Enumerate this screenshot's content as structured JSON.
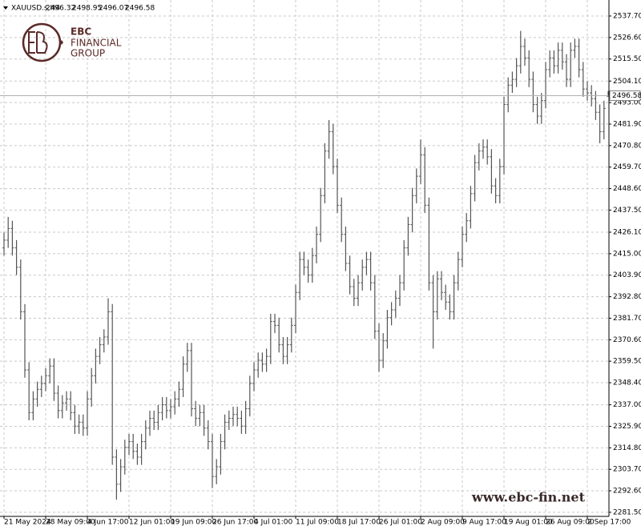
{
  "chart_data": {
    "type": "ohlc",
    "title": "XAUUSD.s,H4",
    "color": "#555555",
    "grid": true,
    "categories": [
      "21 May 2024",
      null,
      null,
      null,
      null,
      null,
      null,
      null,
      null,
      null,
      "28 May 09:00",
      null,
      null,
      null,
      null,
      null,
      null,
      null,
      null,
      null,
      "4 Jun 17:00",
      null,
      null,
      null,
      null,
      null,
      null,
      null,
      null,
      null,
      "12 Jun 01:00",
      null,
      null,
      null,
      null,
      null,
      null,
      null,
      null,
      null,
      "19 Jun 09:00",
      null,
      null,
      null,
      null,
      null,
      null,
      null,
      null,
      null,
      "26 Jun 17:00",
      null,
      null,
      null,
      null,
      null,
      null,
      null,
      null,
      null,
      "4 Jul 01:00",
      null,
      null,
      null,
      null,
      null,
      null,
      null,
      null,
      null,
      "11 Jul 09:00",
      null,
      null,
      null,
      null,
      null,
      null,
      null,
      null,
      null,
      "18 Jul 17:00",
      null,
      null,
      null,
      null,
      null,
      null,
      null,
      null,
      null,
      "26 Jul 01:00",
      null,
      null,
      null,
      null,
      null,
      null,
      null,
      null,
      null,
      "2 Aug 09:00",
      null,
      null,
      null,
      null,
      null,
      null,
      null,
      null,
      null,
      "9 Aug 17:00",
      null,
      null,
      null,
      null,
      null,
      null,
      null,
      null,
      null,
      "19 Aug 01:00",
      null,
      null,
      null,
      null,
      null,
      null,
      null,
      null,
      null,
      "26 Aug 09:00",
      null,
      null,
      null,
      null,
      null,
      null,
      null,
      null,
      null,
      "2 Sep 17:00",
      null,
      null,
      null,
      null,
      null
    ],
    "open": [
      2418,
      2422,
      2428,
      2418,
      2408,
      2385,
      2355,
      2333,
      2340,
      2345,
      2348,
      2352,
      2357,
      2343,
      2334,
      2338,
      2340,
      2333,
      2326,
      2328,
      2325,
      2340,
      2352,
      2362,
      2368,
      2372,
      2385,
      2310,
      2296,
      2305,
      2315,
      2318,
      2313,
      2310,
      2318,
      2325,
      2330,
      2328,
      2333,
      2337,
      2334,
      2336,
      2340,
      2345,
      2358,
      2365,
      2335,
      2330,
      2333,
      2325,
      2318,
      2300,
      2305,
      2318,
      2328,
      2330,
      2332,
      2330,
      2326,
      2335,
      2348,
      2355,
      2360,
      2358,
      2362,
      2380,
      2378,
      2368,
      2362,
      2368,
      2378,
      2395,
      2412,
      2408,
      2404,
      2414,
      2425,
      2445,
      2468,
      2478,
      2460,
      2440,
      2425,
      2410,
      2398,
      2392,
      2400,
      2408,
      2412,
      2400,
      2375,
      2360,
      2370,
      2382,
      2386,
      2392,
      2400,
      2418,
      2430,
      2445,
      2455,
      2466,
      2440,
      2400,
      2385,
      2402,
      2395,
      2390,
      2385,
      2400,
      2412,
      2425,
      2432,
      2446,
      2462,
      2468,
      2470,
      2465,
      2450,
      2445,
      2460,
      2492,
      2502,
      2505,
      2512,
      2522,
      2516,
      2505,
      2492,
      2486,
      2494,
      2510,
      2516,
      2512,
      2520,
      2514,
      2505,
      2520,
      2522,
      2510,
      2500,
      2498,
      2495,
      2488,
      2478,
      2496.32
    ],
    "high": [
      2426,
      2434,
      2432,
      2422,
      2412,
      2389,
      2359,
      2344,
      2349,
      2352,
      2356,
      2361,
      2361,
      2347,
      2342,
      2344,
      2344,
      2337,
      2332,
      2332,
      2344,
      2356,
      2366,
      2372,
      2376,
      2392,
      2389,
      2314,
      2309,
      2319,
      2322,
      2322,
      2317,
      2322,
      2329,
      2334,
      2334,
      2337,
      2341,
      2341,
      2340,
      2344,
      2349,
      2362,
      2369,
      2369,
      2339,
      2337,
      2337,
      2329,
      2322,
      2309,
      2322,
      2332,
      2334,
      2336,
      2336,
      2334,
      2339,
      2352,
      2359,
      2364,
      2364,
      2366,
      2384,
      2384,
      2382,
      2372,
      2372,
      2382,
      2399,
      2416,
      2416,
      2412,
      2418,
      2429,
      2449,
      2472,
      2484,
      2482,
      2464,
      2444,
      2429,
      2414,
      2402,
      2404,
      2412,
      2416,
      2416,
      2404,
      2379,
      2374,
      2386,
      2390,
      2396,
      2404,
      2422,
      2434,
      2449,
      2459,
      2474,
      2470,
      2444,
      2404,
      2406,
      2406,
      2399,
      2394,
      2404,
      2416,
      2429,
      2436,
      2450,
      2466,
      2472,
      2474,
      2474,
      2469,
      2454,
      2464,
      2496,
      2506,
      2509,
      2516,
      2530,
      2526,
      2520,
      2509,
      2496,
      2498,
      2514,
      2520,
      2520,
      2524,
      2524,
      2518,
      2524,
      2526,
      2526,
      2514,
      2504,
      2502,
      2499,
      2492,
      2494,
      2498.95
    ],
    "low": [
      2414,
      2418,
      2414,
      2404,
      2381,
      2351,
      2329,
      2329,
      2336,
      2341,
      2344,
      2348,
      2339,
      2330,
      2330,
      2334,
      2329,
      2322,
      2322,
      2321,
      2321,
      2336,
      2348,
      2358,
      2364,
      2368,
      2306,
      2288,
      2292,
      2301,
      2311,
      2309,
      2306,
      2306,
      2314,
      2321,
      2324,
      2324,
      2329,
      2330,
      2330,
      2332,
      2336,
      2341,
      2354,
      2331,
      2326,
      2326,
      2321,
      2314,
      2294,
      2296,
      2301,
      2314,
      2324,
      2326,
      2326,
      2322,
      2322,
      2331,
      2344,
      2351,
      2354,
      2354,
      2358,
      2374,
      2364,
      2358,
      2358,
      2364,
      2374,
      2391,
      2404,
      2400,
      2400,
      2410,
      2421,
      2441,
      2464,
      2456,
      2436,
      2421,
      2406,
      2394,
      2388,
      2388,
      2396,
      2404,
      2396,
      2371,
      2354,
      2356,
      2366,
      2378,
      2382,
      2388,
      2396,
      2414,
      2426,
      2441,
      2451,
      2436,
      2396,
      2366,
      2381,
      2391,
      2386,
      2381,
      2381,
      2396,
      2408,
      2421,
      2428,
      2442,
      2458,
      2464,
      2461,
      2446,
      2441,
      2441,
      2456,
      2488,
      2498,
      2501,
      2508,
      2512,
      2501,
      2488,
      2482,
      2482,
      2490,
      2506,
      2508,
      2508,
      2510,
      2501,
      2501,
      2516,
      2506,
      2496,
      2494,
      2491,
      2484,
      2472,
      2474,
      2496.07
    ],
    "close": [
      2422,
      2428,
      2418,
      2408,
      2385,
      2355,
      2333,
      2340,
      2345,
      2348,
      2352,
      2357,
      2343,
      2334,
      2338,
      2340,
      2333,
      2326,
      2328,
      2325,
      2340,
      2352,
      2362,
      2368,
      2372,
      2385,
      2310,
      2296,
      2305,
      2315,
      2318,
      2313,
      2310,
      2318,
      2325,
      2330,
      2328,
      2333,
      2337,
      2334,
      2336,
      2340,
      2345,
      2358,
      2365,
      2335,
      2330,
      2333,
      2325,
      2318,
      2300,
      2305,
      2318,
      2328,
      2330,
      2332,
      2330,
      2326,
      2335,
      2348,
      2355,
      2360,
      2358,
      2362,
      2380,
      2378,
      2368,
      2362,
      2368,
      2378,
      2395,
      2412,
      2408,
      2404,
      2414,
      2425,
      2445,
      2468,
      2478,
      2460,
      2440,
      2425,
      2410,
      2398,
      2392,
      2400,
      2408,
      2412,
      2400,
      2375,
      2360,
      2370,
      2382,
      2386,
      2392,
      2400,
      2418,
      2430,
      2445,
      2455,
      2466,
      2440,
      2400,
      2385,
      2402,
      2395,
      2390,
      2385,
      2400,
      2412,
      2425,
      2432,
      2446,
      2462,
      2468,
      2470,
      2465,
      2450,
      2445,
      2460,
      2492,
      2502,
      2505,
      2512,
      2522,
      2516,
      2505,
      2492,
      2486,
      2494,
      2510,
      2516,
      2512,
      2520,
      2514,
      2505,
      2520,
      2522,
      2510,
      2500,
      2498,
      2495,
      2488,
      2478,
      2490,
      2496.58
    ],
    "ylim": [
      2279.4,
      2544.3
    ],
    "yticks": [
      {
        "value": 2537.7,
        "label": "2537.70"
      },
      {
        "value": 2526.6,
        "label": "2526.60"
      },
      {
        "value": 2515.5,
        "label": "2515.50"
      },
      {
        "value": 2504.1,
        "label": "2504.10"
      },
      {
        "value": 2493,
        "label": "2493.00"
      },
      {
        "value": 2481.9,
        "label": "2481.90"
      },
      {
        "value": 2470.8,
        "label": "2470.80"
      },
      {
        "value": 2459.7,
        "label": "2459.70"
      },
      {
        "value": 2448.6,
        "label": "2448.60"
      },
      {
        "value": 2437.5,
        "label": "2437.50"
      },
      {
        "value": 2426.1,
        "label": "2426.10"
      },
      {
        "value": 2415,
        "label": "2415.00"
      },
      {
        "value": 2403.9,
        "label": "2403.90"
      },
      {
        "value": 2392.8,
        "label": "2392.80"
      },
      {
        "value": 2381.7,
        "label": "2381.70"
      },
      {
        "value": 2370.6,
        "label": "2370.60"
      },
      {
        "value": 2359.5,
        "label": "2359.50"
      },
      {
        "value": 2348.4,
        "label": "2348.40"
      },
      {
        "value": 2337,
        "label": "2337.00"
      },
      {
        "value": 2325.9,
        "label": "2325.90"
      },
      {
        "value": 2314.8,
        "label": "2314.80"
      },
      {
        "value": 2303.7,
        "label": "2303.70"
      },
      {
        "value": 2292.6,
        "label": "2292.60"
      },
      {
        "value": 2281.5,
        "label": "2281.50"
      }
    ]
  },
  "logo": {
    "lines": [
      "EBC",
      "FINANCIAL",
      "GROUP"
    ]
  },
  "watermark": "www.ebc-fin.net"
}
